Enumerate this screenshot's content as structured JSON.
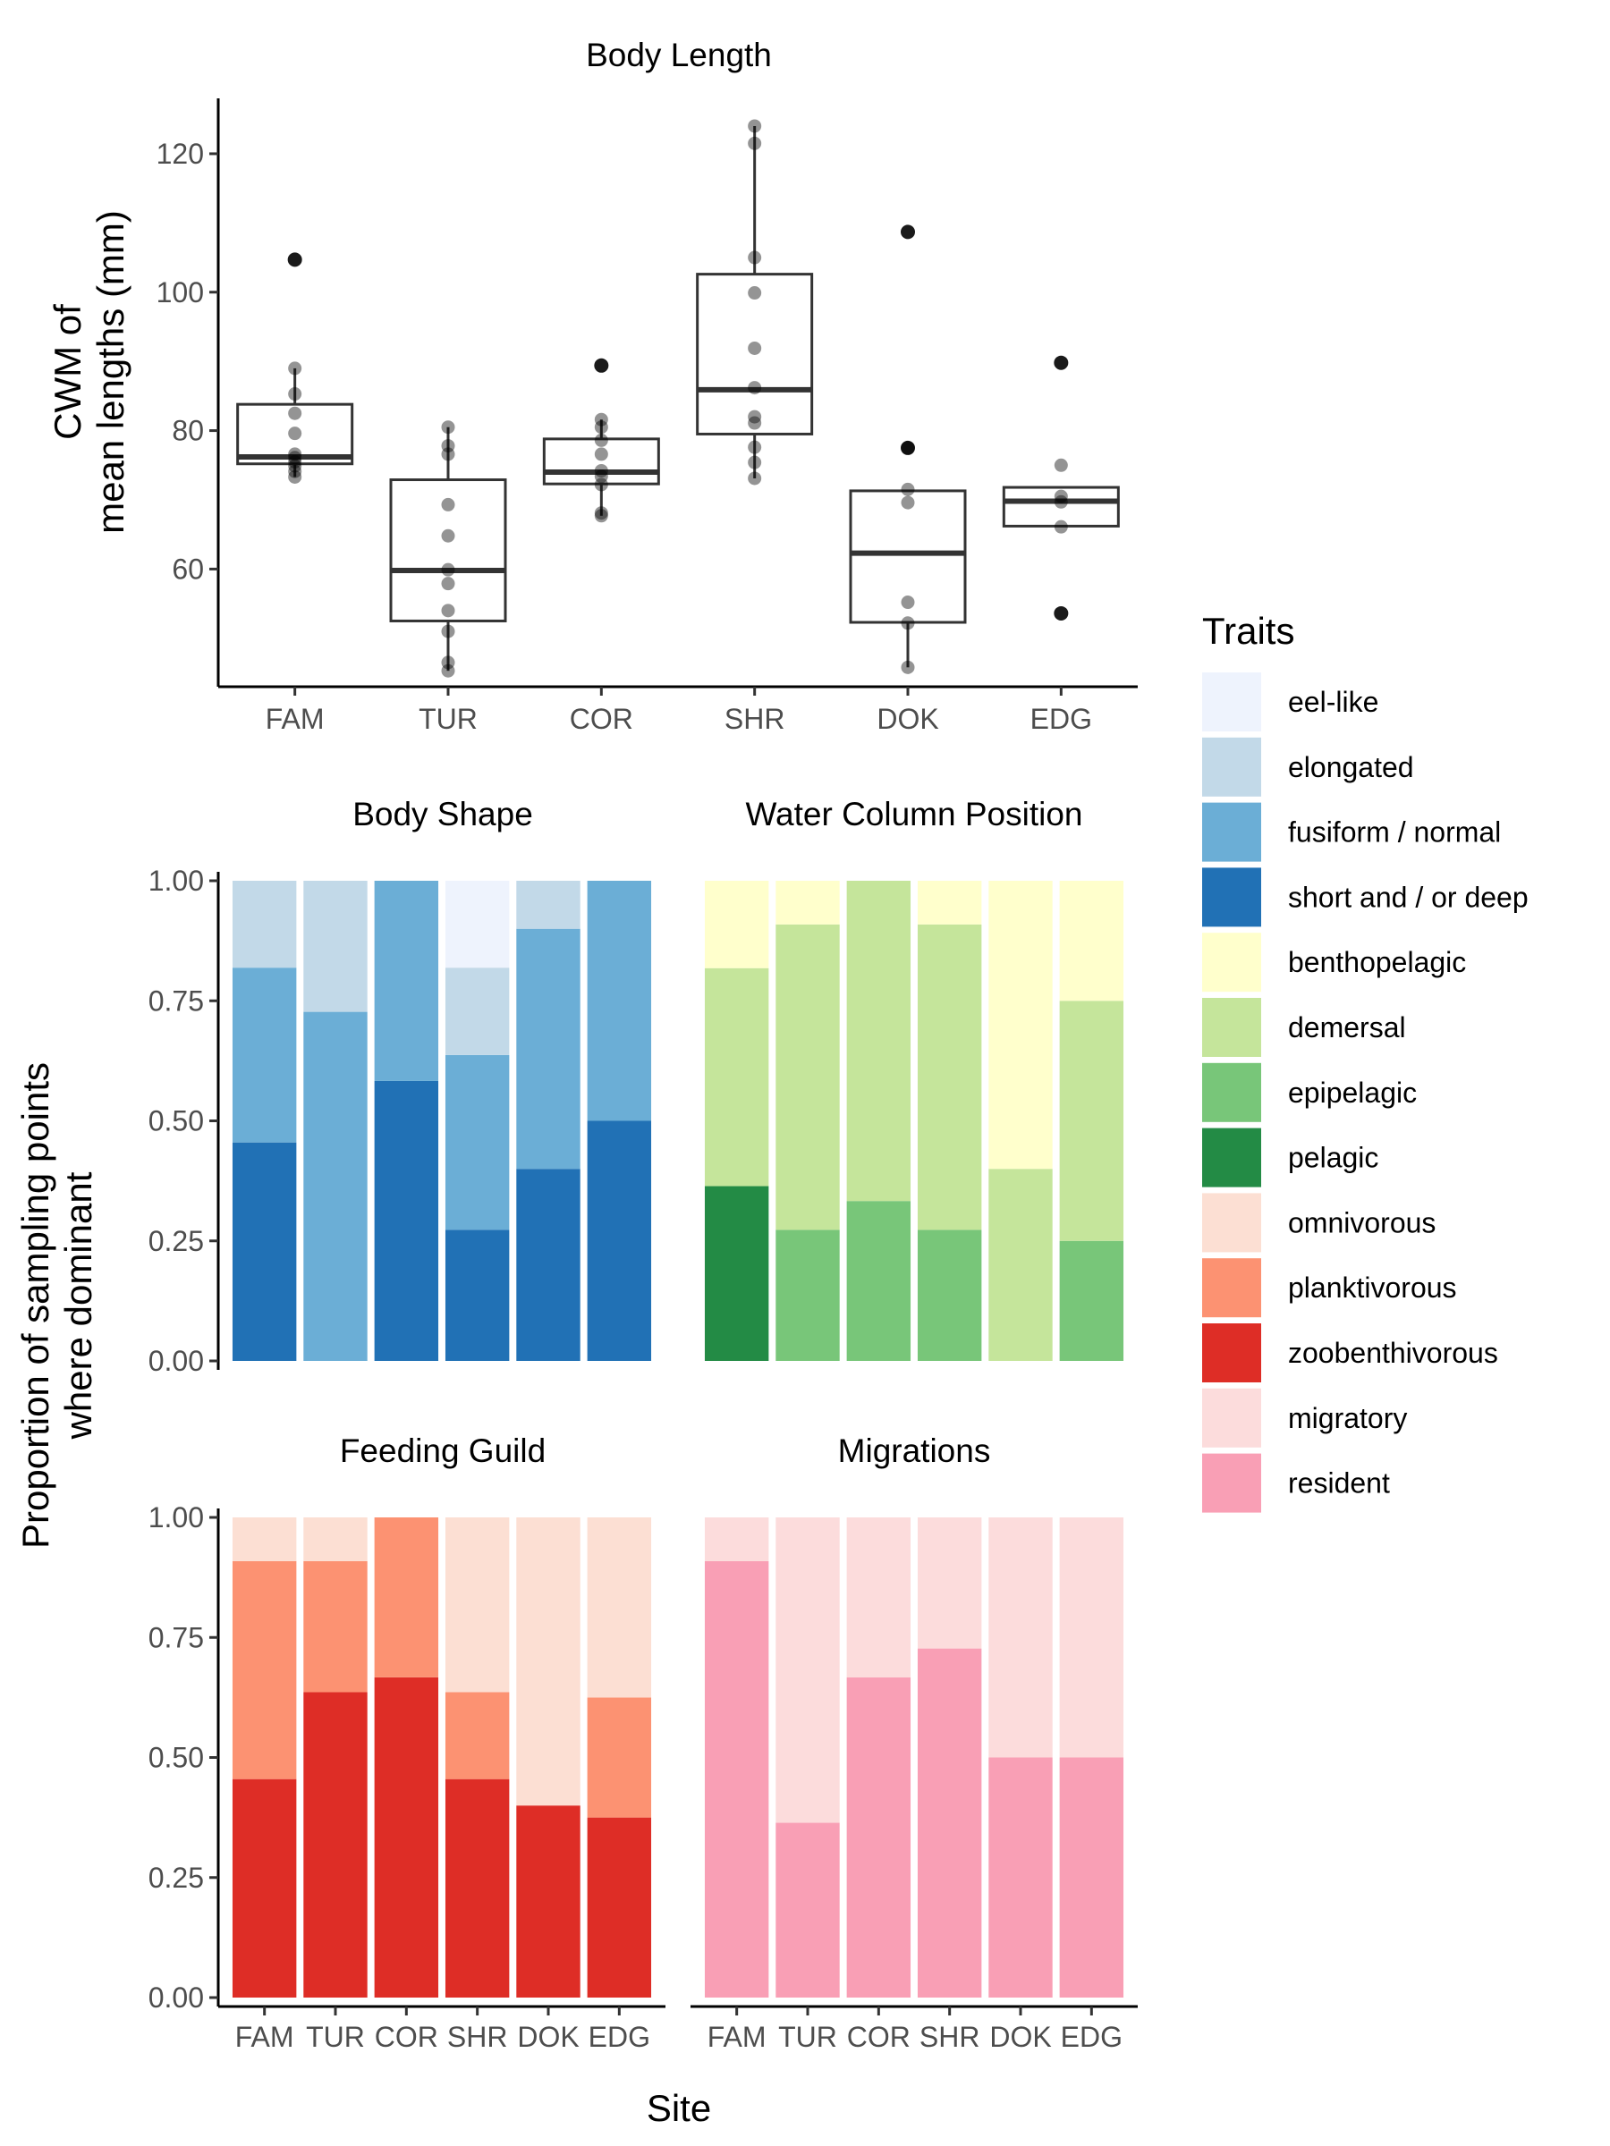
{
  "chart_data": [
    {
      "type": "box",
      "title": "Body Length",
      "xlabel": "",
      "ylabel": "CWM of\nmean lengths (mm)",
      "ylim": [
        43,
        128
      ],
      "yticks": [
        "60",
        "80",
        "100",
        "120"
      ],
      "categories": [
        "FAM",
        "TUR",
        "COR",
        "SHR",
        "DOK",
        "EDG"
      ],
      "grid": false,
      "boxes": [
        {
          "site": "FAM",
          "q1": 75.2,
          "median": 76.2,
          "q3": 83.8,
          "lower": 73.3,
          "upper": 89.0,
          "outliers": [
            104.7
          ],
          "points": [
            73.3,
            74.1,
            74.9,
            75.5,
            76.1,
            76.6,
            79.6,
            82.5,
            85.3,
            89.0
          ]
        },
        {
          "site": "TUR",
          "q1": 52.5,
          "median": 59.8,
          "q3": 72.9,
          "lower": 45.3,
          "upper": 80.5,
          "outliers": [],
          "points": [
            45.3,
            46.5,
            51.0,
            54.0,
            57.9,
            59.9,
            64.8,
            69.3,
            76.6,
            77.8,
            80.5
          ]
        },
        {
          "site": "COR",
          "q1": 72.3,
          "median": 74.0,
          "q3": 78.8,
          "lower": 67.7,
          "upper": 81.6,
          "outliers": [
            89.4
          ],
          "points": [
            67.7,
            68.1,
            72.2,
            73.4,
            74.2,
            76.6,
            78.6,
            80.5,
            81.6
          ]
        },
        {
          "site": "SHR",
          "q1": 79.5,
          "median": 85.9,
          "q3": 102.6,
          "lower": 73.1,
          "upper": 124.0,
          "outliers": [],
          "points": [
            73.1,
            75.4,
            77.6,
            81.1,
            82.0,
            86.2,
            91.9,
            99.9,
            105.0,
            121.5,
            124.0
          ]
        },
        {
          "site": "DOK",
          "q1": 52.3,
          "median": 62.3,
          "q3": 71.3,
          "lower": 45.8,
          "upper": 71.3,
          "outliers": [
            108.7,
            77.5
          ],
          "points": [
            45.8,
            52.2,
            55.2,
            69.6,
            71.5,
            77.5
          ]
        },
        {
          "site": "EDG",
          "q1": 66.2,
          "median": 69.8,
          "q3": 71.8,
          "lower": 66.2,
          "upper": 71.8,
          "outliers": [
            89.8,
            53.6
          ],
          "points": [
            66.1,
            69.7,
            70.5,
            75.0
          ]
        }
      ]
    },
    {
      "type": "bar",
      "stacked": true,
      "title": "Body Shape",
      "categories": [
        "FAM",
        "TUR",
        "COR",
        "SHR",
        "DOK",
        "EDG"
      ],
      "ylim": [
        0,
        1
      ],
      "series": [
        {
          "name": "short and / or deep",
          "color": "#2171b5",
          "values": [
            0.455,
            0,
            0.583,
            0.273,
            0.4,
            0.5
          ]
        },
        {
          "name": "fusiform / normal",
          "color": "#6baed6",
          "values": [
            0.364,
            0.727,
            0.417,
            0.364,
            0.5,
            0.5
          ]
        },
        {
          "name": "elongated",
          "color": "#c2d9e8",
          "values": [
            0.181,
            0.273,
            0,
            0.182,
            0.1,
            0
          ]
        },
        {
          "name": "eel-like",
          "color": "#eef3fd",
          "values": [
            0,
            0,
            0,
            0.181,
            0,
            0
          ]
        }
      ]
    },
    {
      "type": "bar",
      "stacked": true,
      "title": "Water Column Position",
      "categories": [
        "FAM",
        "TUR",
        "COR",
        "SHR",
        "DOK",
        "EDG"
      ],
      "ylim": [
        0,
        1
      ],
      "series": [
        {
          "name": "pelagic",
          "color": "#238b45",
          "values": [
            0.364,
            0,
            0,
            0,
            0,
            0
          ]
        },
        {
          "name": "epipelagic",
          "color": "#78c679",
          "values": [
            0,
            0.273,
            0.333,
            0.273,
            0,
            0.25
          ]
        },
        {
          "name": "demersal",
          "color": "#c5e59b",
          "values": [
            0.454,
            0.636,
            0.667,
            0.636,
            0.4,
            0.5
          ]
        },
        {
          "name": "benthopelagic",
          "color": "#ffffcc",
          "values": [
            0.182,
            0.091,
            0,
            0.091,
            0.6,
            0.25
          ]
        }
      ]
    },
    {
      "type": "bar",
      "stacked": true,
      "title": "Feeding Guild",
      "categories": [
        "FAM",
        "TUR",
        "COR",
        "SHR",
        "DOK",
        "EDG"
      ],
      "ylim": [
        0,
        1
      ],
      "series": [
        {
          "name": "zoobenthivorous",
          "color": "#de2d26",
          "values": [
            0.455,
            0.636,
            0.667,
            0.455,
            0.4,
            0.375
          ]
        },
        {
          "name": "planktivorous",
          "color": "#fc9272",
          "values": [
            0.454,
            0.273,
            0.333,
            0.181,
            0,
            0.25
          ]
        },
        {
          "name": "omnivorous",
          "color": "#fcdfd3",
          "values": [
            0.091,
            0.091,
            0,
            0.364,
            0.6,
            0.375
          ]
        }
      ]
    },
    {
      "type": "bar",
      "stacked": true,
      "title": "Migrations",
      "categories": [
        "FAM",
        "TUR",
        "COR",
        "SHR",
        "DOK",
        "EDG"
      ],
      "ylim": [
        0,
        1
      ],
      "series": [
        {
          "name": "resident",
          "color": "#f99fb5",
          "values": [
            0.909,
            0.364,
            0.667,
            0.727,
            0.5,
            0.5
          ]
        },
        {
          "name": "migratory",
          "color": "#fcdcdc",
          "values": [
            0.091,
            0.636,
            0.333,
            0.273,
            0.5,
            0.5
          ]
        }
      ]
    }
  ],
  "shared": {
    "bar_yticks": [
      "0.00",
      "0.25",
      "0.50",
      "0.75",
      "1.00"
    ],
    "bar_ylabel": "Proportion of sampling points\nwhere dominant",
    "xlabel": "Site"
  },
  "legend": {
    "title": "Traits",
    "placement": "right",
    "items": [
      {
        "label": "eel-like",
        "color": "#eef3fd"
      },
      {
        "label": "elongated",
        "color": "#c2d9e8"
      },
      {
        "label": "fusiform / normal",
        "color": "#6baed6"
      },
      {
        "label": "short and / or deep",
        "color": "#2171b5"
      },
      {
        "label": "benthopelagic",
        "color": "#ffffcc"
      },
      {
        "label": "demersal",
        "color": "#c5e59b"
      },
      {
        "label": "epipelagic",
        "color": "#78c679"
      },
      {
        "label": "pelagic",
        "color": "#238b45"
      },
      {
        "label": "omnivorous",
        "color": "#fcdfd3"
      },
      {
        "label": "planktivorous",
        "color": "#fc9272"
      },
      {
        "label": "zoobenthivorous",
        "color": "#de2d26"
      },
      {
        "label": "migratory",
        "color": "#fcdcdc"
      },
      {
        "label": "resident",
        "color": "#f99fb5"
      }
    ]
  }
}
